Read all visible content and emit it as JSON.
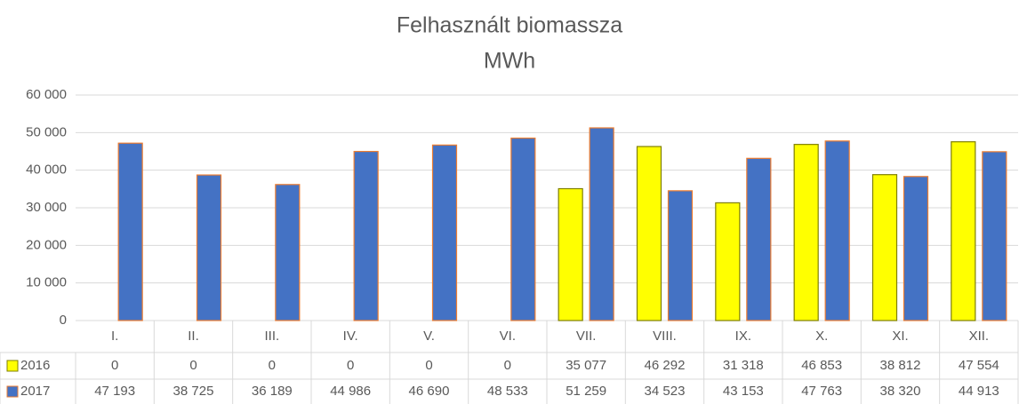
{
  "chart_data": {
    "type": "bar",
    "title": "Felhasznált biomassza",
    "subtitle": "MWh",
    "categories": [
      "I.",
      "II.",
      "III.",
      "IV.",
      "V.",
      "VI.",
      "VII.",
      "VIII.",
      "IX.",
      "X.",
      "XI.",
      "XII."
    ],
    "series": [
      {
        "name": "2016",
        "color": "#ffff00",
        "border": "#7f7f00",
        "values": [
          0,
          0,
          0,
          0,
          0,
          0,
          35077,
          46292,
          31318,
          46853,
          38812,
          47554
        ],
        "value_labels": [
          "0",
          "0",
          "0",
          "0",
          "0",
          "0",
          "35 077",
          "46 292",
          "31 318",
          "46 853",
          "38 812",
          "47 554"
        ]
      },
      {
        "name": "2017",
        "color": "#4472c4",
        "border": "#ed7d31",
        "values": [
          47193,
          38725,
          36189,
          44986,
          46690,
          48533,
          51259,
          34523,
          43153,
          47763,
          38320,
          44913
        ],
        "value_labels": [
          "47 193",
          "38 725",
          "36 189",
          "44 986",
          "46 690",
          "48 533",
          "51 259",
          "34 523",
          "43 153",
          "47 763",
          "38 320",
          "44 913"
        ]
      }
    ],
    "ylim": [
      0,
      60000
    ],
    "yticks": [
      0,
      {
        "value": 10000,
        "label": "10 000"
      },
      {
        "value": 20000,
        "label": "20 000"
      },
      {
        "value": 30000,
        "label": "30 000"
      },
      {
        "value": 40000,
        "label": "40 000"
      },
      {
        "value": 50000,
        "label": "50 000"
      },
      {
        "value": 60000,
        "label": "60 000"
      }
    ],
    "grid": true
  }
}
